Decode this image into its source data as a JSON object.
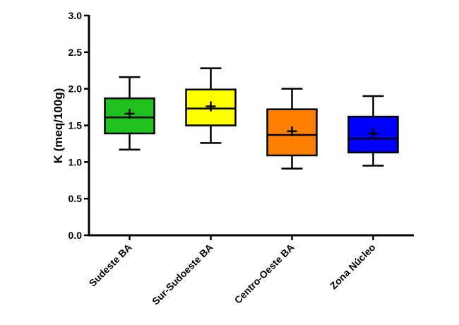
{
  "chart_data": {
    "type": "box",
    "ylabel": "K (meq/100g)",
    "ylim": [
      0,
      3.0
    ],
    "yticks": [
      "0.0",
      "0.5",
      "1.0",
      "1.5",
      "2.0",
      "2.5",
      "3.0"
    ],
    "grid": false,
    "categories": [
      "Sudeste BA",
      "Sur-Sudoeste BA",
      "Centro-Oeste BA",
      "Zona Núcleo"
    ],
    "boxes": [
      {
        "category": "Sudeste BA",
        "min": 1.17,
        "q1": 1.39,
        "median": 1.61,
        "q3": 1.87,
        "max": 2.16,
        "mean": 1.66,
        "color": "#1fc21f"
      },
      {
        "category": "Sur-Sudoeste BA",
        "min": 1.26,
        "q1": 1.5,
        "median": 1.73,
        "q3": 1.99,
        "max": 2.28,
        "mean": 1.76,
        "color": "#ffff00"
      },
      {
        "category": "Centro-Oeste BA",
        "min": 0.91,
        "q1": 1.09,
        "median": 1.37,
        "q3": 1.72,
        "max": 2.0,
        "mean": 1.42,
        "color": "#ff7f00"
      },
      {
        "category": "Zona Núcleo",
        "min": 0.95,
        "q1": 1.13,
        "median": 1.32,
        "q3": 1.62,
        "max": 1.9,
        "mean": 1.39,
        "color": "#0000ff"
      }
    ]
  }
}
